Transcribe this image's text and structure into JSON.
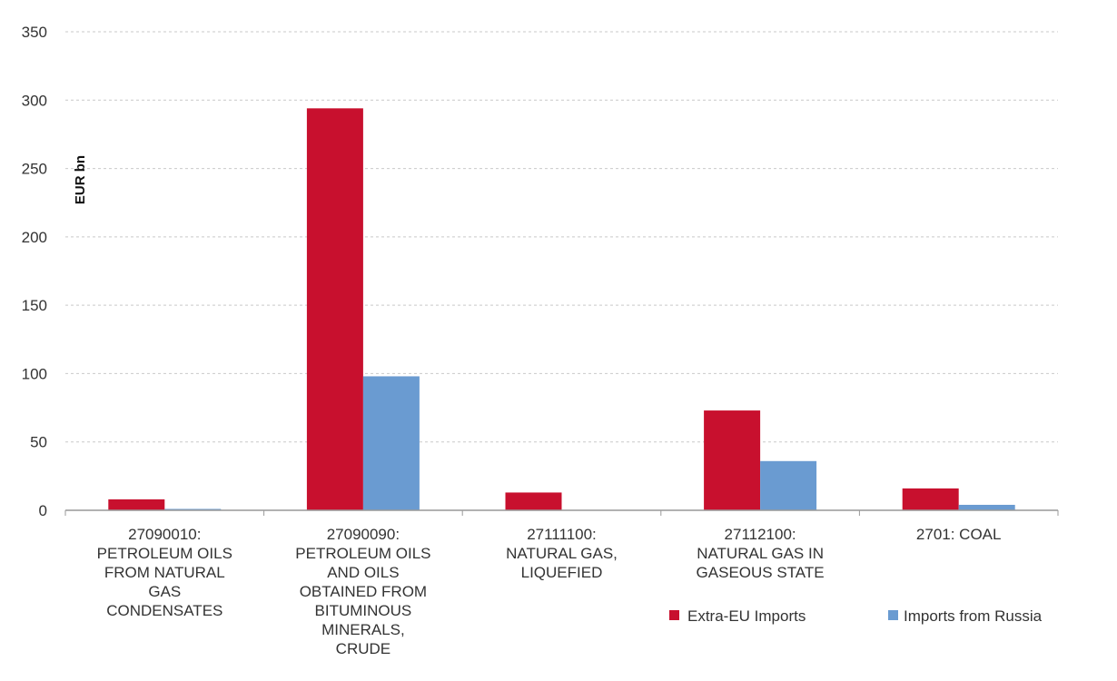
{
  "chart_data": {
    "type": "bar",
    "title": "",
    "xlabel": "",
    "ylabel": "EUR bn",
    "ylim": [
      0,
      350
    ],
    "yticks": [
      0,
      50,
      100,
      150,
      200,
      250,
      300,
      350
    ],
    "grid": true,
    "legend_position": "bottom-right",
    "categories": [
      [
        "27090010:",
        "PETROLEUM OILS",
        "FROM NATURAL",
        "GAS",
        "CONDENSATES"
      ],
      [
        "27090090:",
        "PETROLEUM OILS",
        "AND OILS",
        "OBTAINED FROM",
        "BITUMINOUS",
        "MINERALS,",
        "CRUDE"
      ],
      [
        "27111100:",
        "NATURAL GAS,",
        "LIQUEFIED"
      ],
      [
        "27112100:",
        "NATURAL GAS IN",
        "GASEOUS STATE"
      ],
      [
        "2701: COAL"
      ]
    ],
    "series": [
      {
        "name": "Extra-EU Imports",
        "color": "#c8102e",
        "values": [
          8,
          294,
          13,
          73,
          16
        ]
      },
      {
        "name": "Imports from Russia",
        "color": "#6a9bd1",
        "values": [
          1,
          98,
          0,
          36,
          4
        ]
      }
    ]
  }
}
